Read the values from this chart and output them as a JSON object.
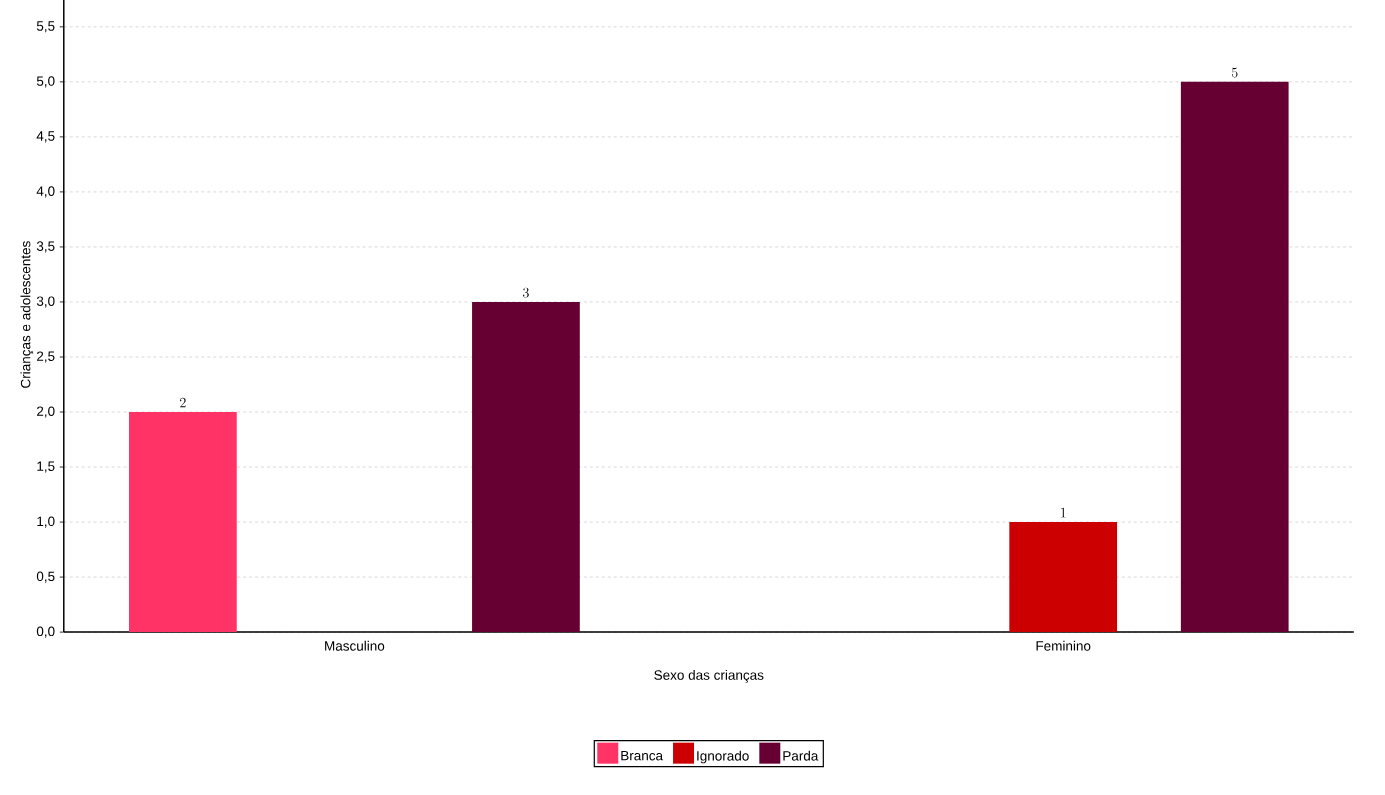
{
  "chart_data": {
    "type": "bar",
    "xlabel": "Sexo das crianças",
    "ylabel": "Crianças e adolescentes",
    "categories": [
      "Masculino",
      "Feminino"
    ],
    "series": [
      {
        "name": "Branca",
        "color": "#ff3366",
        "values": [
          2,
          null
        ]
      },
      {
        "name": "Ignorado",
        "color": "#cc0000",
        "values": [
          null,
          1
        ]
      },
      {
        "name": "Parda",
        "color": "#660033",
        "values": [
          3,
          5
        ]
      }
    ],
    "ylim": [
      0,
      5.77
    ],
    "yticks": [
      {
        "value": 0,
        "label": "0,0"
      },
      {
        "value": 0.5,
        "label": "0,5"
      },
      {
        "value": 1,
        "label": "1,0"
      },
      {
        "value": 1.5,
        "label": "1,5"
      },
      {
        "value": 2,
        "label": "2,0"
      },
      {
        "value": 2.5,
        "label": "2,5"
      },
      {
        "value": 3,
        "label": "3,0"
      },
      {
        "value": 3.5,
        "label": "3,5"
      },
      {
        "value": 4,
        "label": "4,0"
      },
      {
        "value": 4.5,
        "label": "4,5"
      },
      {
        "value": 5,
        "label": "5,0"
      },
      {
        "value": 5.5,
        "label": "5,5"
      }
    ],
    "grid": "y",
    "data_labels": true,
    "legend": "bottom"
  }
}
